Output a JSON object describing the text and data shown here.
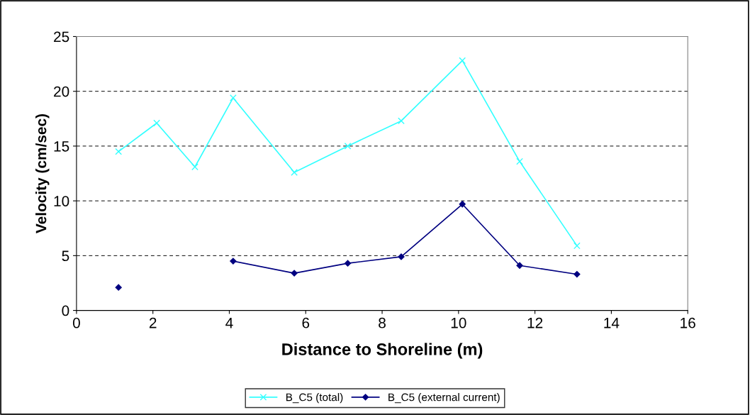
{
  "chart_data": {
    "type": "line",
    "xlabel": "Distance to Shoreline (m)",
    "ylabel": "Velocity (cm/sec)",
    "x": [
      1.1,
      2.1,
      3.1,
      4.1,
      5.7,
      7.1,
      8.5,
      10.1,
      11.6,
      13.1
    ],
    "series": [
      {
        "name": "B_C5 (total)",
        "color": "#33ffff",
        "marker": "cross",
        "values": [
          14.5,
          17.1,
          13.1,
          19.4,
          12.6,
          15.0,
          17.3,
          22.8,
          13.6,
          5.9
        ]
      },
      {
        "name": "B_C5 (external current)",
        "color": "#000080",
        "marker": "diamond",
        "values": [
          2.1,
          null,
          null,
          4.5,
          3.4,
          4.3,
          4.9,
          9.7,
          4.1,
          3.3
        ]
      }
    ],
    "xlim": [
      0,
      16
    ],
    "xticks": [
      0,
      2,
      4,
      6,
      8,
      10,
      12,
      14,
      16
    ],
    "ylim": [
      0,
      25
    ],
    "yticks": [
      0,
      5,
      10,
      15,
      20,
      25
    ],
    "grid": "y",
    "legend": "bottom",
    "line_style": "solid"
  }
}
